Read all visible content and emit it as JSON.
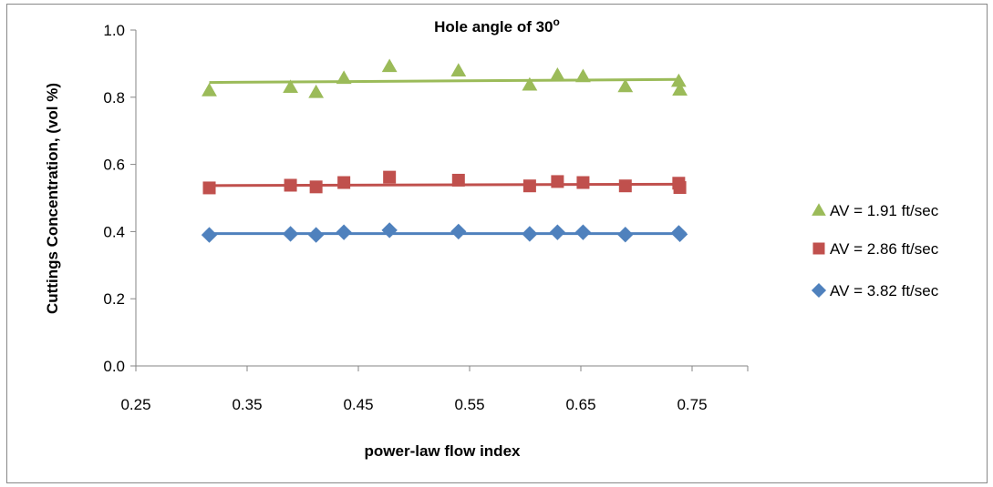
{
  "chart_data": {
    "type": "scatter",
    "title": "Hole angle of 30",
    "title_superscript": "o",
    "xlabel": "power-law flow index",
    "ylabel": "Cuttings Concentration, (vol %)",
    "xlim": [
      0.25,
      0.8
    ],
    "ylim": [
      0.0,
      1.0
    ],
    "x_ticks": [
      "0.25",
      "0.35",
      "0.45",
      "0.55",
      "0.65",
      "0.75"
    ],
    "y_ticks": [
      "0.0",
      "0.2",
      "0.4",
      "0.6",
      "0.8",
      "1.0"
    ],
    "grid": false,
    "legend_position": "right",
    "series": [
      {
        "name": "AV = 1.91 ft/sec",
        "marker": "triangle",
        "color": "#9bbb59",
        "x": [
          0.316,
          0.389,
          0.412,
          0.437,
          0.478,
          0.54,
          0.604,
          0.629,
          0.652,
          0.69,
          0.738,
          0.739
        ],
        "y": [
          0.82,
          0.83,
          0.815,
          0.857,
          0.892,
          0.879,
          0.837,
          0.866,
          0.862,
          0.832,
          0.848,
          0.822
        ],
        "trend": [
          0.844,
          0.853
        ]
      },
      {
        "name": "AV = 2.86 ft/sec",
        "marker": "square",
        "color": "#c0504d",
        "x": [
          0.316,
          0.389,
          0.412,
          0.437,
          0.478,
          0.54,
          0.604,
          0.629,
          0.652,
          0.69,
          0.738,
          0.739
        ],
        "y": [
          0.53,
          0.538,
          0.533,
          0.546,
          0.562,
          0.553,
          0.536,
          0.549,
          0.546,
          0.536,
          0.544,
          0.531
        ],
        "trend": [
          0.537,
          0.541
        ]
      },
      {
        "name": "AV = 3.82 ft/sec",
        "marker": "diamond",
        "color": "#4f81bd",
        "x": [
          0.316,
          0.389,
          0.412,
          0.437,
          0.478,
          0.54,
          0.604,
          0.629,
          0.652,
          0.69,
          0.738,
          0.739
        ],
        "y": [
          0.39,
          0.393,
          0.39,
          0.398,
          0.404,
          0.4,
          0.393,
          0.398,
          0.398,
          0.391,
          0.396,
          0.392
        ],
        "trend": [
          0.394,
          0.394
        ]
      }
    ]
  }
}
